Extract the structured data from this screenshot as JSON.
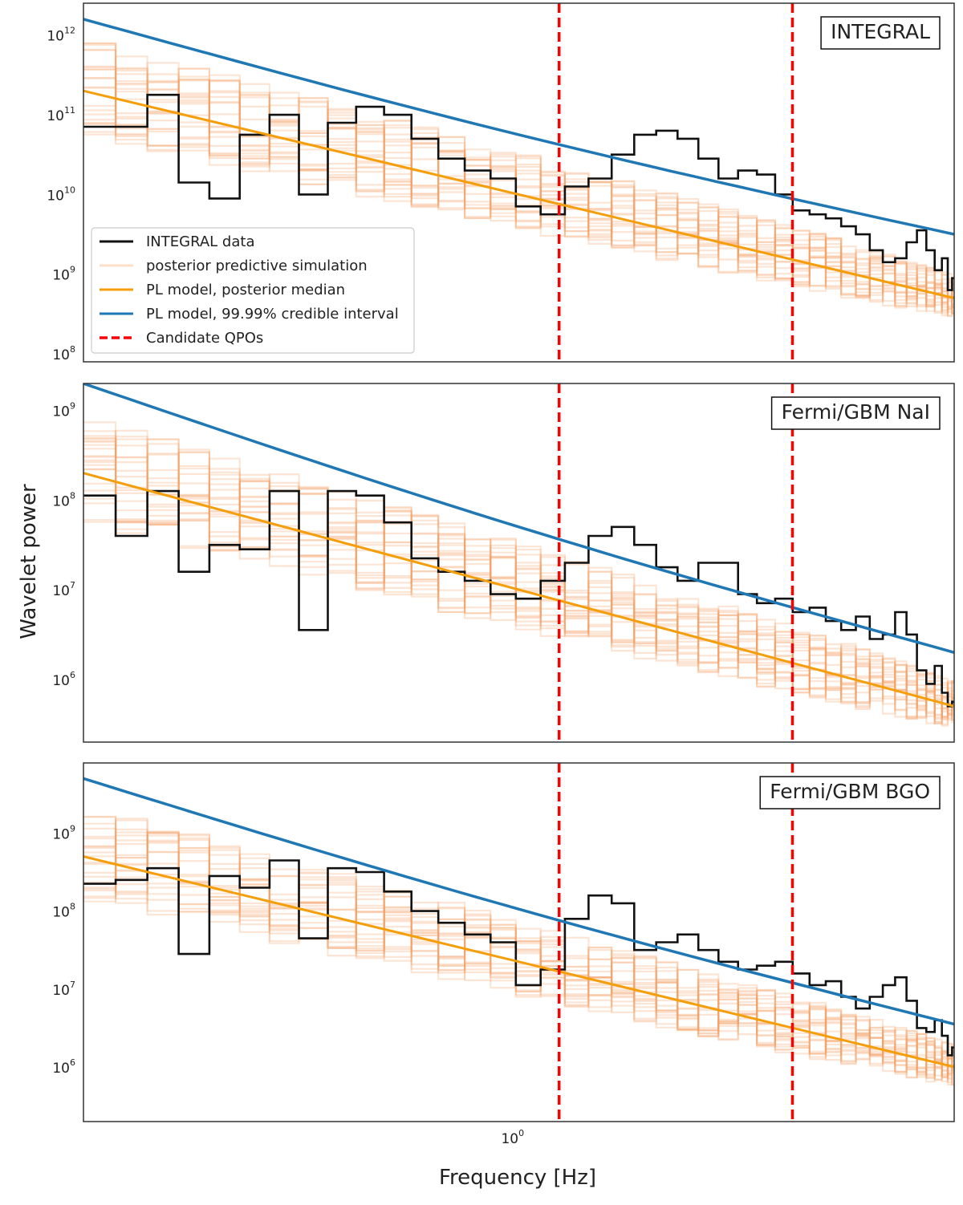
{
  "chart_data": {
    "type": "line",
    "xlabel": "Frequency [Hz]",
    "ylabel": "Wavelet power",
    "xscale": "log",
    "yscale": "log",
    "xlim": [
      0.28,
      3.6
    ],
    "x_ticks": [
      {
        "base": "10",
        "exp": "0",
        "value": 1
      }
    ],
    "qpo_frequencies": [
      1.13,
      2.24
    ],
    "legend": {
      "placement": "lower-left of top panel",
      "entries": [
        {
          "label": "INTEGRAL data",
          "color": "#111111",
          "style": "solid"
        },
        {
          "label": "posterior predictive simulation",
          "color": "#fbc9a3",
          "style": "solid-faint"
        },
        {
          "label": "PL model, posterior median",
          "color": "#f59e0b",
          "style": "solid"
        },
        {
          "label": "PL model, 99.99% credible interval",
          "color": "#1f77b4",
          "style": "solid"
        },
        {
          "label": "Candidate QPOs",
          "color": "#ff0000",
          "style": "dashed"
        }
      ]
    },
    "colors": {
      "data": "#111111",
      "sim": "#f6a068",
      "median": "#f59e0b",
      "interval": "#1f77b4",
      "qpo": "#ff0000"
    },
    "panels": [
      {
        "label": "INTEGRAL",
        "ylim_log10": [
          7.9,
          12.4
        ],
        "y_ticks": [
          {
            "base": "10",
            "exp": "8",
            "value": 8
          },
          {
            "base": "10",
            "exp": "9",
            "value": 9
          },
          {
            "base": "10",
            "exp": "10",
            "value": 10
          },
          {
            "base": "10",
            "exp": "11",
            "value": 11
          },
          {
            "base": "10",
            "exp": "12",
            "value": 12
          }
        ],
        "median_log10": [
          11.3,
          8.7
        ],
        "upper_log10": [
          12.2,
          9.5
        ],
        "data_log10": [
          10.85,
          10.85,
          11.25,
          10.15,
          9.95,
          10.75,
          11.0,
          10.0,
          10.9,
          11.1,
          11.0,
          10.7,
          10.45,
          10.3,
          10.2,
          9.85,
          9.75,
          10.1,
          10.2,
          10.5,
          10.75,
          10.8,
          10.7,
          10.45,
          10.2,
          10.3,
          10.25,
          10.0,
          9.8,
          9.75,
          9.7,
          9.6,
          9.5,
          9.3,
          9.15,
          9.2,
          9.4,
          9.55,
          9.3,
          9.05,
          9.2,
          8.8,
          8.95
        ]
      },
      {
        "label": "Fermi/GBM NaI",
        "ylim_log10": [
          5.3,
          9.3
        ],
        "y_ticks": [
          {
            "base": "10",
            "exp": "6",
            "value": 6
          },
          {
            "base": "10",
            "exp": "7",
            "value": 7
          },
          {
            "base": "10",
            "exp": "8",
            "value": 8
          },
          {
            "base": "10",
            "exp": "9",
            "value": 9
          }
        ],
        "median_log10": [
          8.3,
          5.7
        ],
        "upper_log10": [
          9.3,
          6.3
        ],
        "data_log10": [
          8.05,
          7.6,
          8.1,
          7.2,
          7.5,
          7.45,
          8.1,
          6.55,
          8.1,
          8.05,
          7.75,
          7.35,
          7.2,
          7.1,
          6.95,
          6.9,
          7.1,
          7.3,
          7.6,
          7.7,
          7.5,
          7.25,
          7.1,
          7.3,
          7.3,
          6.95,
          6.85,
          6.9,
          6.75,
          6.8,
          6.65,
          6.55,
          6.7,
          6.45,
          6.5,
          6.75,
          6.5,
          6.1,
          5.95,
          6.15,
          5.85,
          5.7,
          5.75
        ]
      },
      {
        "label": "Fermi/GBM BGO",
        "ylim_log10": [
          5.3,
          9.9
        ],
        "y_ticks": [
          {
            "base": "10",
            "exp": "6",
            "value": 6
          },
          {
            "base": "10",
            "exp": "7",
            "value": 7
          },
          {
            "base": "10",
            "exp": "8",
            "value": 8
          },
          {
            "base": "10",
            "exp": "9",
            "value": 9
          }
        ],
        "median_log10": [
          8.7,
          6.0
        ],
        "upper_log10": [
          9.7,
          6.55
        ],
        "data_log10": [
          8.35,
          8.4,
          8.55,
          7.45,
          8.45,
          8.3,
          8.65,
          7.65,
          8.55,
          8.5,
          8.25,
          8.0,
          7.85,
          7.7,
          7.6,
          7.05,
          7.25,
          7.9,
          8.2,
          8.1,
          7.5,
          7.6,
          7.7,
          7.5,
          7.35,
          7.25,
          7.3,
          7.35,
          7.2,
          7.05,
          7.1,
          6.9,
          6.75,
          6.9,
          7.05,
          7.15,
          6.85,
          6.5,
          6.45,
          6.6,
          6.4,
          6.15,
          6.25
        ]
      }
    ]
  }
}
